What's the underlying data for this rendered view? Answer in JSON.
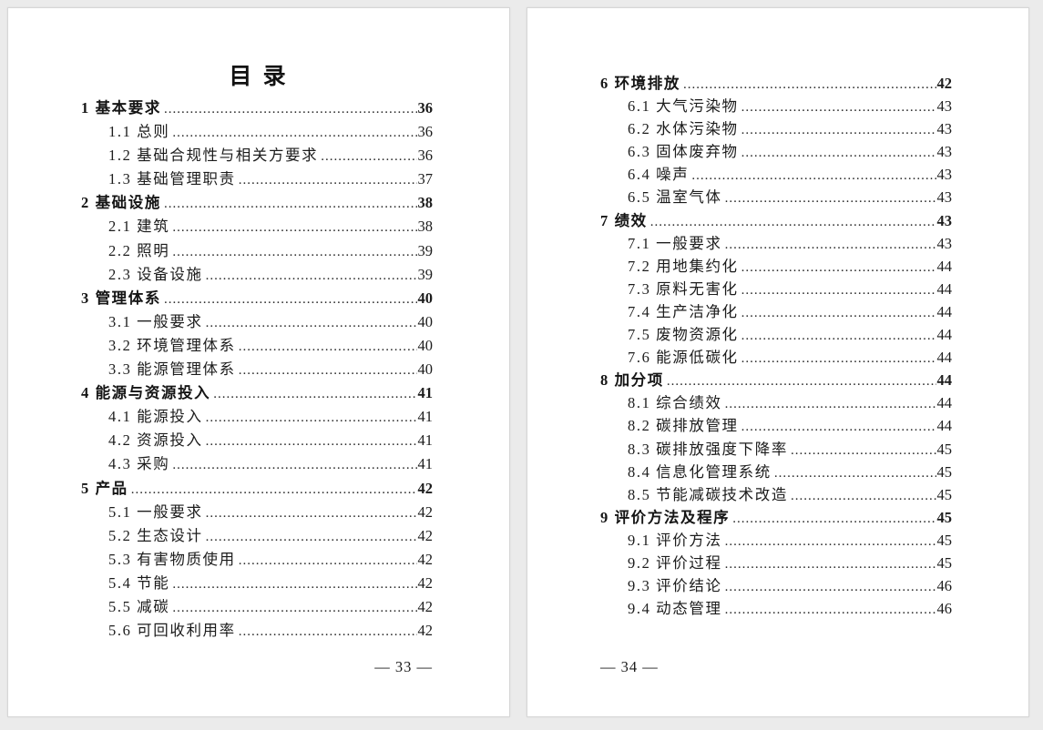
{
  "toc": {
    "title": "目 录",
    "pages": [
      {
        "side": "left",
        "footer": "— 33 —",
        "entries": [
          {
            "label": "1 基本要求",
            "page": "36",
            "level": 1
          },
          {
            "label": "1.1 总则",
            "page": "36",
            "level": 2
          },
          {
            "label": "1.2 基础合规性与相关方要求",
            "page": "36",
            "level": 2
          },
          {
            "label": "1.3 基础管理职责",
            "page": "37",
            "level": 2
          },
          {
            "label": "2 基础设施",
            "page": "38",
            "level": 1
          },
          {
            "label": "2.1 建筑",
            "page": "38",
            "level": 2
          },
          {
            "label": "2.2 照明",
            "page": "39",
            "level": 2
          },
          {
            "label": "2.3 设备设施",
            "page": "39",
            "level": 2
          },
          {
            "label": "3 管理体系",
            "page": "40",
            "level": 1
          },
          {
            "label": "3.1 一般要求",
            "page": "40",
            "level": 2
          },
          {
            "label": "3.2 环境管理体系",
            "page": "40",
            "level": 2
          },
          {
            "label": "3.3 能源管理体系",
            "page": "40",
            "level": 2
          },
          {
            "label": "4 能源与资源投入",
            "page": "41",
            "level": 1
          },
          {
            "label": "4.1 能源投入",
            "page": "41",
            "level": 2
          },
          {
            "label": "4.2 资源投入",
            "page": "41",
            "level": 2
          },
          {
            "label": "4.3 采购",
            "page": "41",
            "level": 2
          },
          {
            "label": "5 产品",
            "page": "42",
            "level": 1
          },
          {
            "label": "5.1 一般要求",
            "page": "42",
            "level": 2
          },
          {
            "label": "5.2 生态设计",
            "page": "42",
            "level": 2
          },
          {
            "label": "5.3 有害物质使用",
            "page": "42",
            "level": 2
          },
          {
            "label": "5.4 节能",
            "page": "42",
            "level": 2
          },
          {
            "label": "5.5 减碳",
            "page": "42",
            "level": 2
          },
          {
            "label": "5.6 可回收利用率",
            "page": "42",
            "level": 2
          }
        ]
      },
      {
        "side": "right",
        "footer": "— 34 —",
        "entries": [
          {
            "label": "6 环境排放",
            "page": "42",
            "level": 1
          },
          {
            "label": "6.1 大气污染物",
            "page": "43",
            "level": 2
          },
          {
            "label": "6.2 水体污染物",
            "page": "43",
            "level": 2
          },
          {
            "label": "6.3 固体废弃物",
            "page": "43",
            "level": 2
          },
          {
            "label": "6.4 噪声",
            "page": "43",
            "level": 2
          },
          {
            "label": "6.5 温室气体",
            "page": "43",
            "level": 2
          },
          {
            "label": "7 绩效",
            "page": "43",
            "level": 1
          },
          {
            "label": "7.1 一般要求",
            "page": "43",
            "level": 2
          },
          {
            "label": "7.2 用地集约化",
            "page": "44",
            "level": 2
          },
          {
            "label": "7.3 原料无害化",
            "page": "44",
            "level": 2
          },
          {
            "label": "7.4 生产洁净化",
            "page": "44",
            "level": 2
          },
          {
            "label": "7.5 废物资源化",
            "page": "44",
            "level": 2
          },
          {
            "label": "7.6 能源低碳化",
            "page": "44",
            "level": 2
          },
          {
            "label": "8 加分项",
            "page": "44",
            "level": 1
          },
          {
            "label": "8.1 综合绩效",
            "page": "44",
            "level": 2
          },
          {
            "label": "8.2 碳排放管理",
            "page": "44",
            "level": 2
          },
          {
            "label": "8.3 碳排放强度下降率",
            "page": "45",
            "level": 2
          },
          {
            "label": "8.4 信息化管理系统",
            "page": "45",
            "level": 2
          },
          {
            "label": "8.5 节能减碳技术改造",
            "page": "45",
            "level": 2
          },
          {
            "label": "9 评价方法及程序",
            "page": "45",
            "level": 1
          },
          {
            "label": "9.1 评价方法",
            "page": "45",
            "level": 2
          },
          {
            "label": "9.2 评价过程",
            "page": "45",
            "level": 2
          },
          {
            "label": "9.3 评价结论",
            "page": "46",
            "level": 2
          },
          {
            "label": "9.4 动态管理",
            "page": "46",
            "level": 2
          }
        ]
      }
    ]
  }
}
